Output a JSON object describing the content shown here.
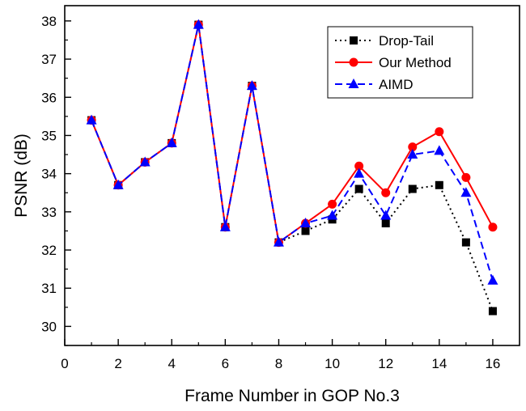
{
  "chart_data": {
    "type": "line",
    "xlabel": "Frame Number in GOP No.3",
    "ylabel": "PSNR (dB)",
    "xlim": [
      0,
      17
    ],
    "ylim": [
      29.5,
      38.4
    ],
    "xticks": [
      0,
      2,
      4,
      6,
      8,
      10,
      12,
      14,
      16
    ],
    "yticks": [
      30,
      31,
      32,
      33,
      34,
      35,
      36,
      37,
      38
    ],
    "grid": false,
    "legend_position": "top-right",
    "x": [
      1,
      2,
      3,
      4,
      5,
      6,
      7,
      8,
      9,
      10,
      11,
      12,
      13,
      14,
      15,
      16
    ],
    "series": [
      {
        "name": "Drop-Tail",
        "color": "#000000",
        "line_style": "dotted",
        "marker": "square",
        "values": [
          35.4,
          33.7,
          34.3,
          34.8,
          37.9,
          32.6,
          36.3,
          32.2,
          32.5,
          32.8,
          33.6,
          32.7,
          33.6,
          33.7,
          32.2,
          30.4
        ]
      },
      {
        "name": "Our Method",
        "color": "#ff0000",
        "line_style": "solid",
        "marker": "circle",
        "values": [
          35.4,
          33.7,
          34.3,
          34.8,
          37.9,
          32.6,
          36.3,
          32.2,
          32.7,
          33.2,
          34.2,
          33.5,
          34.7,
          35.1,
          33.9,
          32.6
        ]
      },
      {
        "name": "AIMD",
        "color": "#0000ff",
        "line_style": "dashed",
        "marker": "triangle",
        "values": [
          35.4,
          33.7,
          34.3,
          34.8,
          37.9,
          32.6,
          36.3,
          32.2,
          32.7,
          32.9,
          34.0,
          32.9,
          34.5,
          34.6,
          33.5,
          31.2
        ]
      }
    ]
  }
}
